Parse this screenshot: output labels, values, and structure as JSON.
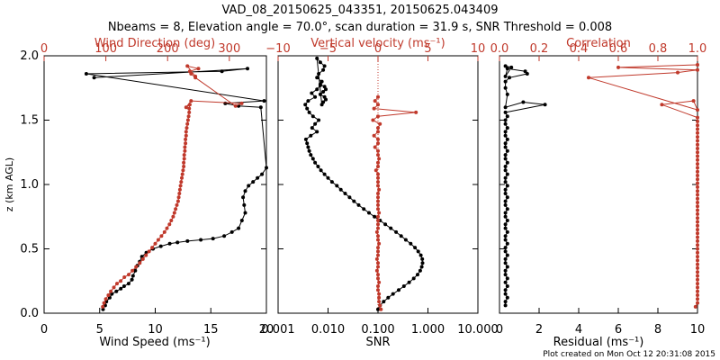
{
  "title_line1": "VAD_08_20150625_043351, 20150625.043409",
  "title_line2": "Nbeams = 8, Elevation angle = 70.0°, scan duration = 31.9 s, SNR Threshold = 0.008",
  "footer": "Plot created on Mon Oct 12 20:31:08 2015",
  "colors": {
    "primary": "#000000",
    "secondary": "#c0392b"
  },
  "chart_data": [
    {
      "type": "line",
      "ylabel": "z (km AGL)",
      "ylim": [
        0.0,
        2.0
      ],
      "ytick_labels": [
        "0.0",
        "0.5",
        "1.0",
        "1.5",
        "2.0"
      ],
      "xlabel": "Wind Speed (ms⁻¹)",
      "xlim": [
        0,
        20
      ],
      "xtick_labels": [
        "0",
        "5",
        "10",
        "15",
        "20"
      ],
      "top_label": "Wind Direction (deg)",
      "top_lim": [
        0,
        360
      ],
      "top_tick_labels": [
        "0",
        "100",
        "200",
        "300"
      ],
      "series": [
        {
          "axis": "bottom",
          "color": "#000000",
          "x": [
            5.3,
            5.5,
            5.6,
            5.9,
            6.1,
            6.5,
            6.9,
            7.2,
            7.6,
            7.9,
            8.0,
            8.2,
            8.4,
            8.6,
            8.8,
            9.2,
            9.8,
            10.5,
            11.3,
            12.0,
            12.9,
            14.1,
            15.2,
            16.2,
            16.9,
            17.5,
            17.8,
            18.1,
            18.0,
            17.9,
            18.1,
            18.4,
            18.8,
            19.2,
            19.6,
            20.0,
            19.5,
            17.5,
            16.3,
            19.8,
            3.8,
            16.0,
            18.3,
            4.5
          ],
          "y": [
            0.03,
            0.06,
            0.09,
            0.12,
            0.15,
            0.17,
            0.19,
            0.21,
            0.23,
            0.26,
            0.29,
            0.33,
            0.37,
            0.4,
            0.44,
            0.47,
            0.5,
            0.52,
            0.54,
            0.55,
            0.56,
            0.57,
            0.58,
            0.6,
            0.63,
            0.66,
            0.72,
            0.78,
            0.84,
            0.9,
            0.95,
            0.99,
            1.02,
            1.05,
            1.08,
            1.13,
            1.6,
            1.61,
            1.63,
            1.65,
            1.86,
            1.88,
            1.9,
            1.83
          ]
        },
        {
          "axis": "top",
          "color": "#c0392b",
          "x": [
            95,
            97,
            100,
            104,
            108,
            113,
            118,
            124,
            130,
            137,
            143,
            149,
            155,
            160,
            165,
            170,
            175,
            180,
            185,
            190,
            195,
            199,
            203,
            206,
            209,
            211,
            213,
            215,
            217,
            218,
            219,
            220,
            221,
            222,
            223,
            224,
            225,
            226,
            226,
            227,
            227,
            228,
            228,
            229,
            229,
            230,
            230,
            231,
            232,
            233,
            234,
            235,
            235,
            236,
            230,
            238,
            320,
            310,
            245,
            238,
            236,
            250,
            232,
            245
          ],
          "y": [
            0.05,
            0.08,
            0.11,
            0.14,
            0.17,
            0.2,
            0.23,
            0.25,
            0.28,
            0.3,
            0.33,
            0.36,
            0.39,
            0.42,
            0.45,
            0.48,
            0.51,
            0.54,
            0.57,
            0.6,
            0.63,
            0.66,
            0.69,
            0.72,
            0.75,
            0.78,
            0.81,
            0.84,
            0.87,
            0.9,
            0.93,
            0.96,
            0.99,
            1.02,
            1.05,
            1.08,
            1.11,
            1.14,
            1.17,
            1.2,
            1.23,
            1.26,
            1.29,
            1.32,
            1.35,
            1.38,
            1.41,
            1.44,
            1.47,
            1.5,
            1.53,
            1.56,
            1.59,
            1.62,
            1.6,
            1.65,
            1.63,
            1.61,
            1.83,
            1.86,
            1.88,
            1.9,
            1.92,
            1.84
          ]
        }
      ]
    },
    {
      "type": "line",
      "xlabel": "SNR",
      "xscale": "log",
      "xlim": [
        0.001,
        10.0
      ],
      "xtick_labels": [
        "0.001",
        "0.010",
        "0.100",
        "1.000",
        "10.000"
      ],
      "top_label": "Vertical velocity (ms⁻¹)",
      "top_lim": [
        -10,
        10
      ],
      "top_tick_labels": [
        "−10",
        "−5",
        "0",
        "5",
        "10"
      ],
      "ylim": [
        0.0,
        2.0
      ],
      "series": [
        {
          "axis": "bottom",
          "color": "#000000",
          "x": [
            0.1,
            0.11,
            0.13,
            0.16,
            0.2,
            0.26,
            0.33,
            0.42,
            0.52,
            0.62,
            0.7,
            0.75,
            0.78,
            0.77,
            0.72,
            0.64,
            0.55,
            0.45,
            0.36,
            0.29,
            0.23,
            0.18,
            0.14,
            0.11,
            0.085,
            0.066,
            0.052,
            0.041,
            0.033,
            0.027,
            0.022,
            0.018,
            0.015,
            0.012,
            0.01,
            0.0085,
            0.0072,
            0.0063,
            0.0055,
            0.005,
            0.0045,
            0.0042,
            0.004,
            0.0038,
            0.0036,
            0.0045,
            0.006,
            0.0048,
            0.0055,
            0.0065,
            0.005,
            0.0042,
            0.0038,
            0.0035,
            0.004,
            0.0055,
            0.0047,
            0.006,
            0.007,
            0.0075,
            0.006,
            0.0065,
            0.008,
            0.0085,
            0.007,
            0.006,
            0.0075,
            0.008,
            0.009,
            0.0085,
            0.007,
            0.008,
            0.009,
            0.0085,
            0.007
          ],
          "y": [
            0.03,
            0.06,
            0.09,
            0.12,
            0.15,
            0.18,
            0.21,
            0.24,
            0.27,
            0.3,
            0.33,
            0.36,
            0.39,
            0.42,
            0.45,
            0.48,
            0.51,
            0.54,
            0.57,
            0.6,
            0.63,
            0.66,
            0.69,
            0.72,
            0.75,
            0.78,
            0.81,
            0.84,
            0.87,
            0.9,
            0.93,
            0.96,
            0.99,
            1.02,
            1.05,
            1.08,
            1.11,
            1.14,
            1.17,
            1.2,
            1.23,
            1.26,
            1.29,
            1.32,
            1.35,
            1.38,
            1.41,
            1.44,
            1.47,
            1.5,
            1.53,
            1.56,
            1.59,
            1.62,
            1.65,
            1.68,
            1.71,
            1.74,
            1.77,
            1.8,
            1.83,
            1.86,
            1.89,
            1.92,
            1.95,
            1.98,
            1.62,
            1.64,
            1.66,
            1.68,
            1.7,
            1.72,
            1.74,
            1.76,
            1.78
          ]
        },
        {
          "axis": "top",
          "color": "#c0392b",
          "x": [
            0.3,
            0.2,
            0.1,
            0.1,
            0.1,
            0.0,
            0.0,
            0.1,
            0.0,
            0.0,
            -0.1,
            0.0,
            0.0,
            -0.1,
            0.0,
            0.0,
            0.0,
            0.1,
            0.0,
            0.0,
            -0.1,
            0.0,
            0.0,
            0.0,
            0.0,
            0.1,
            0.0,
            0.0,
            0.0,
            0.0,
            0.0,
            0.1,
            0.0,
            0.0,
            0.0,
            0.0,
            -0.2,
            0.0,
            0.0,
            0.1,
            0.0,
            0.0,
            -0.3,
            0.0,
            0.0,
            -0.4,
            0.0,
            0.0,
            0.2,
            -0.5,
            0.0,
            3.8,
            -0.4,
            0.0,
            -0.3,
            0.0
          ],
          "y": [
            0.03,
            0.06,
            0.09,
            0.12,
            0.15,
            0.18,
            0.21,
            0.24,
            0.27,
            0.3,
            0.33,
            0.36,
            0.39,
            0.42,
            0.45,
            0.48,
            0.51,
            0.54,
            0.57,
            0.6,
            0.63,
            0.66,
            0.69,
            0.72,
            0.75,
            0.78,
            0.81,
            0.84,
            0.87,
            0.9,
            0.93,
            0.96,
            0.99,
            1.02,
            1.05,
            1.08,
            1.11,
            1.14,
            1.17,
            1.2,
            1.23,
            1.26,
            1.29,
            1.32,
            1.35,
            1.38,
            1.41,
            1.44,
            1.47,
            1.5,
            1.53,
            1.56,
            1.59,
            1.62,
            1.65,
            1.68
          ]
        }
      ]
    },
    {
      "type": "line",
      "xlabel": "Residual (ms⁻¹)",
      "xlim": [
        0,
        10
      ],
      "xtick_labels": [
        "0",
        "2",
        "4",
        "6",
        "8",
        "10"
      ],
      "top_label": "Correlation",
      "top_lim": [
        0.0,
        1.0
      ],
      "top_tick_labels": [
        "0.0",
        "0.2",
        "0.4",
        "0.6",
        "0.8",
        "1.0"
      ],
      "ylim": [
        0.0,
        2.0
      ],
      "series": [
        {
          "axis": "bottom",
          "color": "#000000",
          "x": [
            0.3,
            0.3,
            0.4,
            0.3,
            0.3,
            0.4,
            0.3,
            0.4,
            0.3,
            0.3,
            0.4,
            0.3,
            0.3,
            0.4,
            0.3,
            0.3,
            0.4,
            0.3,
            0.3,
            0.4,
            0.3,
            0.3,
            0.4,
            0.3,
            0.3,
            0.4,
            0.3,
            0.3,
            0.4,
            0.3,
            0.3,
            0.4,
            0.3,
            0.3,
            0.4,
            0.3,
            0.3,
            0.4,
            0.3,
            0.3,
            0.4,
            0.3,
            0.3,
            0.4,
            0.3,
            0.3,
            0.4,
            0.3,
            0.3,
            0.4,
            0.3,
            2.3,
            1.2,
            0.3,
            0.4,
            0.3,
            0.3,
            0.5,
            1.4,
            1.3,
            0.4,
            0.3,
            0.6,
            0.3
          ],
          "y": [
            0.06,
            0.09,
            0.12,
            0.15,
            0.18,
            0.21,
            0.24,
            0.27,
            0.3,
            0.33,
            0.36,
            0.39,
            0.42,
            0.45,
            0.48,
            0.51,
            0.54,
            0.57,
            0.6,
            0.63,
            0.66,
            0.69,
            0.72,
            0.75,
            0.78,
            0.81,
            0.84,
            0.87,
            0.9,
            0.93,
            0.96,
            0.99,
            1.02,
            1.05,
            1.08,
            1.11,
            1.14,
            1.17,
            1.2,
            1.23,
            1.26,
            1.29,
            1.32,
            1.35,
            1.38,
            1.41,
            1.44,
            1.47,
            1.5,
            1.53,
            1.56,
            1.62,
            1.64,
            1.6,
            1.7,
            1.75,
            1.8,
            1.83,
            1.86,
            1.88,
            1.9,
            1.84,
            1.91,
            1.92
          ]
        },
        {
          "axis": "top",
          "color": "#c0392b",
          "x": [
            0.99,
            1.0,
            1.0,
            1.0,
            1.0,
            1.0,
            1.0,
            1.0,
            1.0,
            1.0,
            1.0,
            1.0,
            1.0,
            1.0,
            1.0,
            1.0,
            1.0,
            1.0,
            1.0,
            1.0,
            1.0,
            1.0,
            1.0,
            1.0,
            1.0,
            1.0,
            1.0,
            1.0,
            1.0,
            1.0,
            1.0,
            1.0,
            1.0,
            1.0,
            1.0,
            1.0,
            1.0,
            1.0,
            1.0,
            1.0,
            1.0,
            1.0,
            1.0,
            1.0,
            1.0,
            1.0,
            1.0,
            1.0,
            1.0,
            1.0,
            0.82,
            0.98,
            1.0,
            0.45,
            0.9,
            1.0,
            0.6,
            1.0
          ],
          "y": [
            0.05,
            0.08,
            0.11,
            0.14,
            0.17,
            0.2,
            0.23,
            0.26,
            0.29,
            0.32,
            0.35,
            0.38,
            0.41,
            0.44,
            0.47,
            0.5,
            0.53,
            0.56,
            0.59,
            0.62,
            0.65,
            0.68,
            0.71,
            0.74,
            0.77,
            0.8,
            0.83,
            0.86,
            0.89,
            0.92,
            0.95,
            0.98,
            1.01,
            1.04,
            1.07,
            1.1,
            1.13,
            1.16,
            1.19,
            1.22,
            1.25,
            1.28,
            1.31,
            1.34,
            1.37,
            1.4,
            1.43,
            1.46,
            1.49,
            1.52,
            1.62,
            1.65,
            1.58,
            1.83,
            1.87,
            1.89,
            1.91,
            1.93
          ]
        }
      ]
    }
  ]
}
